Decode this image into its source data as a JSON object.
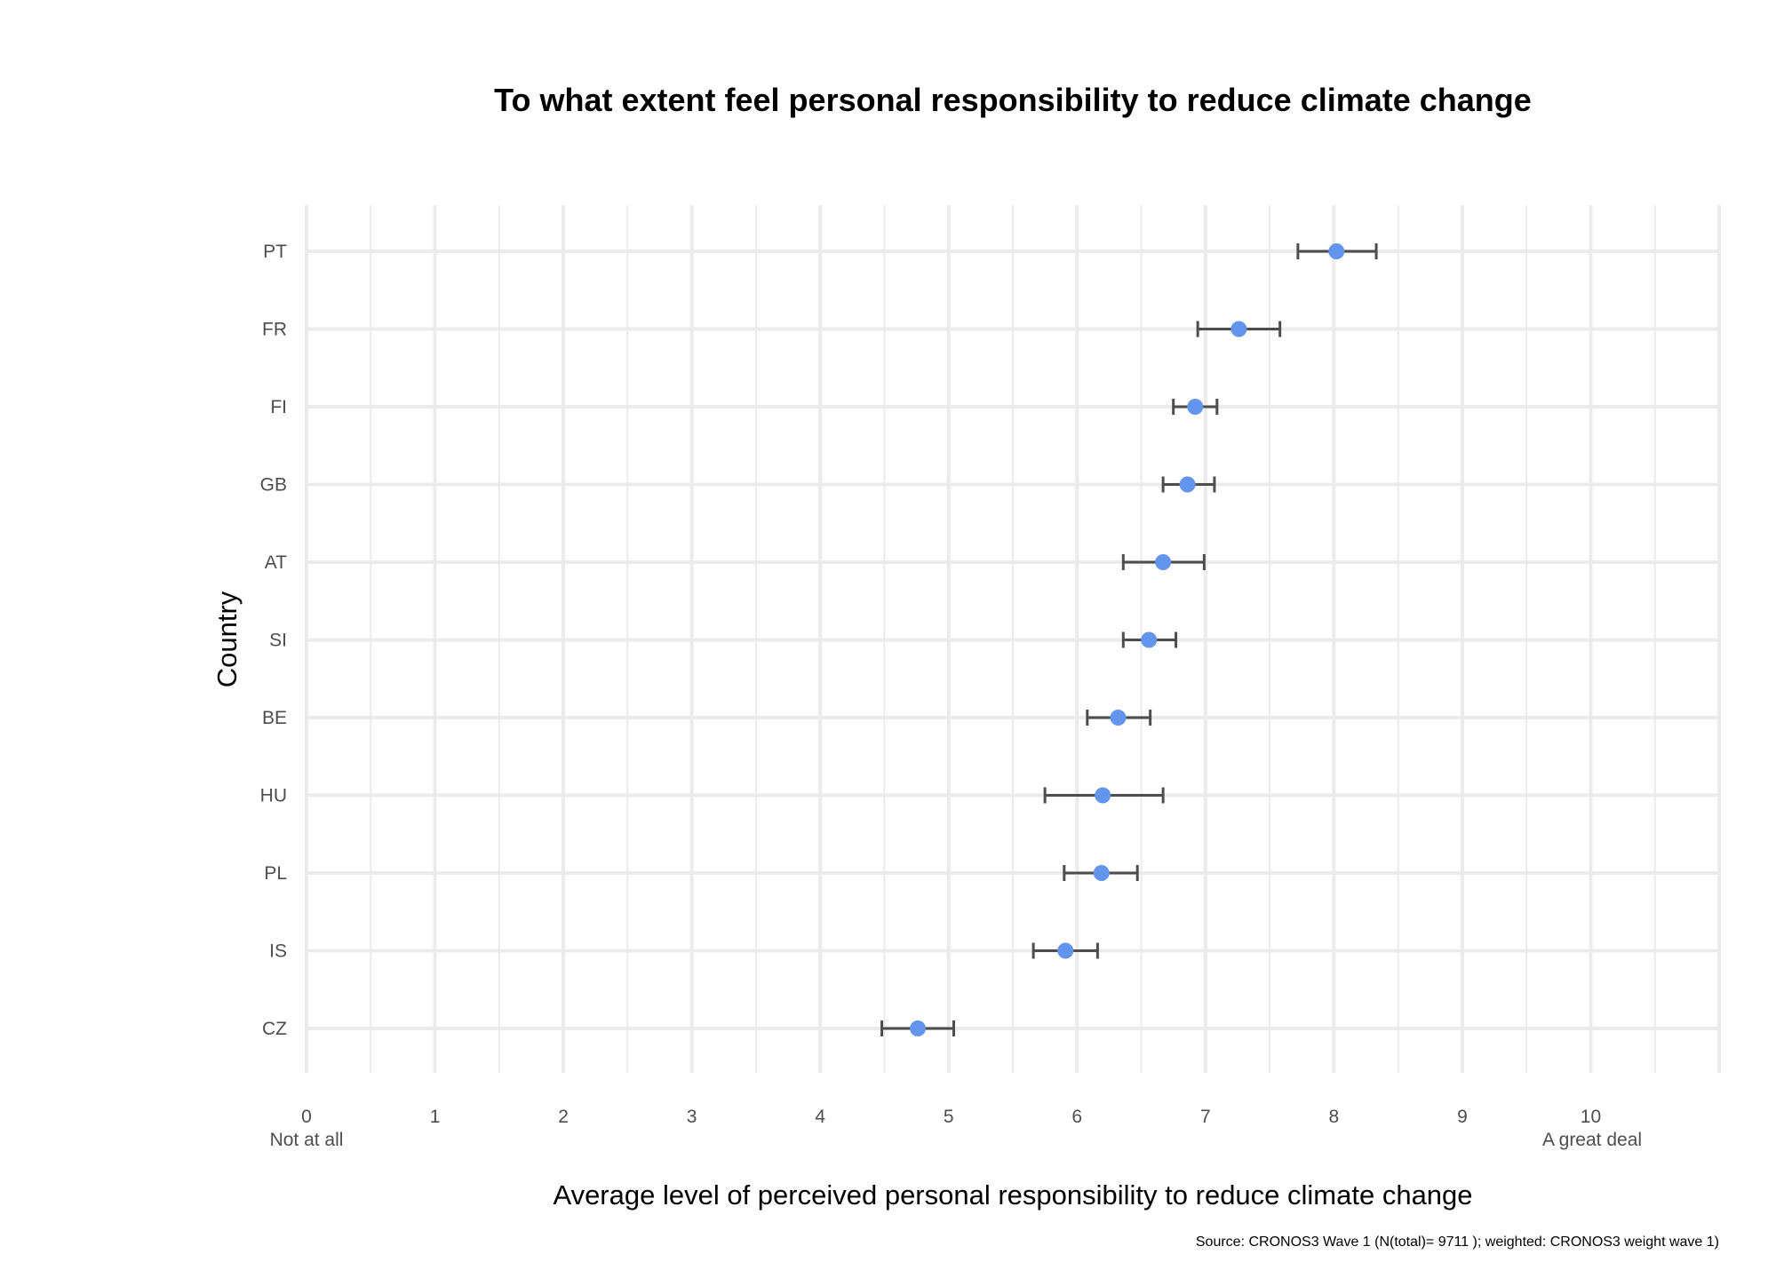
{
  "chart_data": {
    "type": "scatter",
    "subtype": "dot-with-error-bars",
    "title": "To what extent feel personal responsibility to reduce climate change",
    "xlabel": "Average level of perceived personal responsibility to reduce climate change",
    "ylabel": "Country",
    "caption": "Source: CRONOS3 Wave 1 (N(total)= 9711 ); weighted: CRONOS3 weight wave 1)",
    "xlim": [
      0,
      11
    ],
    "x_ticks": [
      "0",
      "1",
      "2",
      "3",
      "4",
      "5",
      "6",
      "7",
      "8",
      "9",
      "10"
    ],
    "x_tick_sublabels": {
      "min": "Not at all",
      "max": "A great deal"
    },
    "grid": true,
    "point_color": "#6495ED",
    "errorbar_color": "#4d4d4d",
    "categories": [
      "PT",
      "FR",
      "FI",
      "GB",
      "AT",
      "SI",
      "BE",
      "HU",
      "PL",
      "IS",
      "CZ"
    ],
    "values": [
      8.02,
      7.26,
      6.92,
      6.86,
      6.67,
      6.56,
      6.32,
      6.2,
      6.19,
      5.91,
      4.76
    ],
    "lower": [
      7.72,
      6.94,
      6.75,
      6.67,
      6.36,
      6.36,
      6.08,
      5.75,
      5.9,
      5.66,
      4.48
    ],
    "upper": [
      8.33,
      7.58,
      7.09,
      7.07,
      6.99,
      6.77,
      6.57,
      6.67,
      6.47,
      6.16,
      5.04
    ]
  }
}
